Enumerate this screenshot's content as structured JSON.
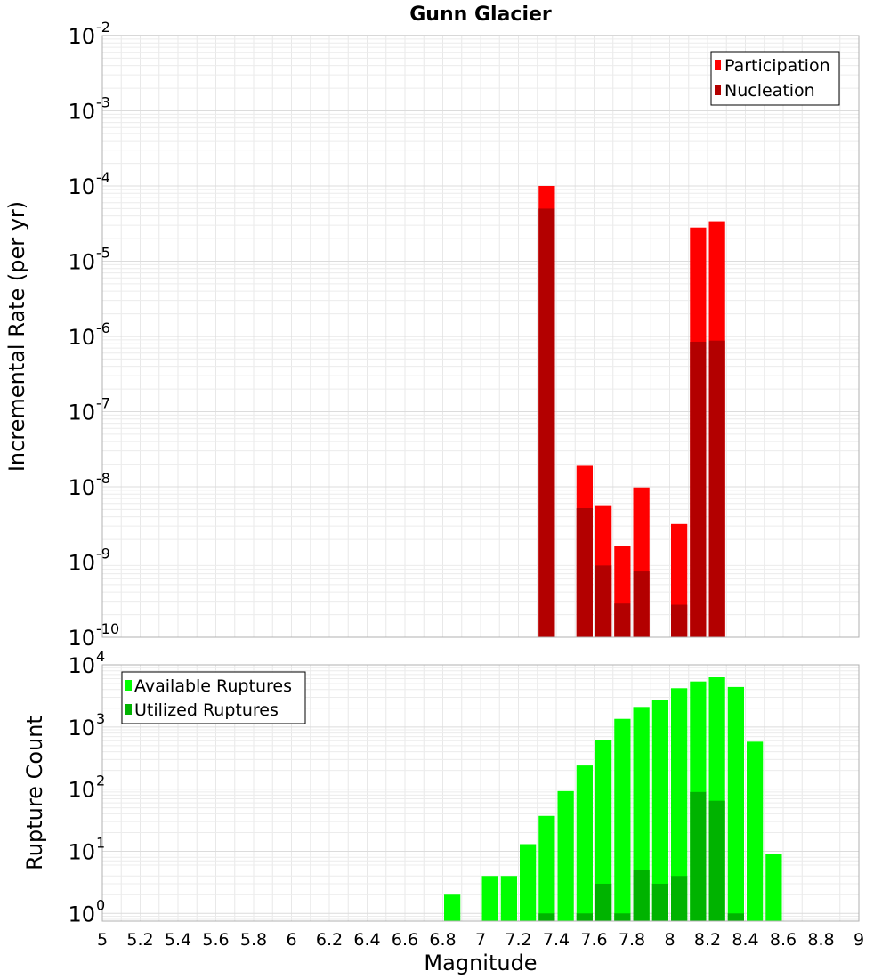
{
  "title": "Gunn Glacier",
  "chart_data": [
    {
      "type": "bar",
      "ylabel": "Incremental Rate (per yr)",
      "yscale": "log",
      "ylim": [
        1e-10,
        0.01
      ],
      "xlim": [
        5,
        9
      ],
      "bin_width": 0.1,
      "y_ticks": [
        {
          "base": "10",
          "exp": "-2",
          "value": 0.01
        },
        {
          "base": "10",
          "exp": "-3",
          "value": 0.001
        },
        {
          "base": "10",
          "exp": "-4",
          "value": 0.0001
        },
        {
          "base": "10",
          "exp": "-5",
          "value": 1e-05
        },
        {
          "base": "10",
          "exp": "-6",
          "value": 1e-06
        },
        {
          "base": "10",
          "exp": "-7",
          "value": 1e-07
        },
        {
          "base": "10",
          "exp": "-8",
          "value": 1e-08
        },
        {
          "base": "10",
          "exp": "-9",
          "value": 1e-09
        },
        {
          "base": "10",
          "exp": "-10",
          "value": 1e-10
        }
      ],
      "legend": {
        "position": "top-right",
        "entries": [
          "Participation",
          "Nucleation"
        ]
      },
      "series": [
        {
          "name": "Participation",
          "color": "#ff0000",
          "points": [
            {
              "x": 7.35,
              "y": 0.0001
            },
            {
              "x": 7.55,
              "y": 1.9e-08
            },
            {
              "x": 7.65,
              "y": 5.7e-09
            },
            {
              "x": 7.75,
              "y": 1.65e-09
            },
            {
              "x": 7.85,
              "y": 9.8e-09
            },
            {
              "x": 8.05,
              "y": 3.2e-09
            },
            {
              "x": 8.15,
              "y": 2.8e-05
            },
            {
              "x": 8.25,
              "y": 3.4e-05
            }
          ]
        },
        {
          "name": "Nucleation",
          "color": "#b30000",
          "points": [
            {
              "x": 7.35,
              "y": 5e-05
            },
            {
              "x": 7.55,
              "y": 5.2e-09
            },
            {
              "x": 7.65,
              "y": 9e-10
            },
            {
              "x": 7.75,
              "y": 2.8e-10
            },
            {
              "x": 7.85,
              "y": 7.5e-10
            },
            {
              "x": 8.05,
              "y": 2.7e-10
            },
            {
              "x": 8.15,
              "y": 8.5e-07
            },
            {
              "x": 8.25,
              "y": 8.8e-07
            }
          ]
        }
      ]
    },
    {
      "type": "bar",
      "xlabel": "Magnitude",
      "ylabel": "Rupture Count",
      "yscale": "log",
      "ylim": [
        0.75,
        10000
      ],
      "xlim": [
        5,
        9
      ],
      "bin_width": 0.1,
      "x_ticks": [
        "5",
        "5.2",
        "5.4",
        "5.6",
        "5.8",
        "6",
        "6.2",
        "6.4",
        "6.6",
        "6.8",
        "7",
        "7.2",
        "7.4",
        "7.6",
        "7.8",
        "8",
        "8.2",
        "8.4",
        "8.6",
        "8.8",
        "9"
      ],
      "y_ticks": [
        {
          "base": "10",
          "exp": "4",
          "value": 10000
        },
        {
          "base": "10",
          "exp": "3",
          "value": 1000
        },
        {
          "base": "10",
          "exp": "2",
          "value": 100
        },
        {
          "base": "10",
          "exp": "1",
          "value": 10
        },
        {
          "base": "10",
          "exp": "0",
          "value": 1
        }
      ],
      "legend": {
        "position": "top-left",
        "entries": [
          "Available Ruptures",
          "Utilized Ruptures"
        ]
      },
      "series": [
        {
          "name": "Available Ruptures",
          "color": "#00ff00",
          "points": [
            {
              "x": 6.85,
              "y": 2
            },
            {
              "x": 7.05,
              "y": 4
            },
            {
              "x": 7.15,
              "y": 4
            },
            {
              "x": 7.25,
              "y": 13
            },
            {
              "x": 7.35,
              "y": 37
            },
            {
              "x": 7.45,
              "y": 93
            },
            {
              "x": 7.55,
              "y": 240
            },
            {
              "x": 7.65,
              "y": 620
            },
            {
              "x": 7.75,
              "y": 1350
            },
            {
              "x": 7.85,
              "y": 2100
            },
            {
              "x": 7.95,
              "y": 2700
            },
            {
              "x": 8.05,
              "y": 4200
            },
            {
              "x": 8.15,
              "y": 5400
            },
            {
              "x": 8.25,
              "y": 6300
            },
            {
              "x": 8.35,
              "y": 4400
            },
            {
              "x": 8.45,
              "y": 580
            },
            {
              "x": 8.55,
              "y": 9
            }
          ]
        },
        {
          "name": "Utilized Ruptures",
          "color": "#00b300",
          "points": [
            {
              "x": 7.35,
              "y": 1
            },
            {
              "x": 7.55,
              "y": 1
            },
            {
              "x": 7.65,
              "y": 3
            },
            {
              "x": 7.75,
              "y": 1
            },
            {
              "x": 7.85,
              "y": 5
            },
            {
              "x": 7.95,
              "y": 3
            },
            {
              "x": 8.05,
              "y": 4
            },
            {
              "x": 8.15,
              "y": 90
            },
            {
              "x": 8.25,
              "y": 65
            },
            {
              "x": 8.35,
              "y": 1
            }
          ]
        }
      ]
    }
  ]
}
